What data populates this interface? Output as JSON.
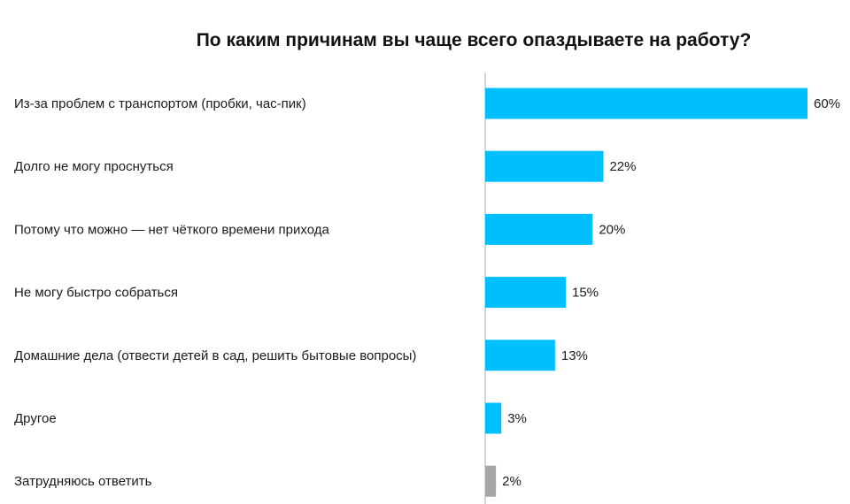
{
  "chart_data": {
    "type": "bar",
    "orientation": "horizontal",
    "title": "По каким причинам вы чаще всего опаздываете на работу?",
    "categories": [
      "Из-за проблем с транспортом (пробки, час-пик)",
      "Долго не могу проснуться",
      "Потому что можно — нет чёткого времени прихода",
      "Не могу быстро собраться",
      "Домашние дела (отвести детей в сад, решить бытовые вопросы)",
      "Другое",
      "Затрудняюсь ответить"
    ],
    "values": [
      60,
      22,
      20,
      15,
      13,
      3,
      2
    ],
    "value_labels": [
      "60%",
      "22%",
      "20%",
      "15%",
      "13%",
      "3%",
      "2%"
    ],
    "colors": [
      "#00bfff",
      "#00bfff",
      "#00bfff",
      "#00bfff",
      "#00bfff",
      "#00bfff",
      "#a6a6a6"
    ],
    "xlim": [
      0,
      60
    ],
    "grid": false,
    "legend": "none"
  }
}
